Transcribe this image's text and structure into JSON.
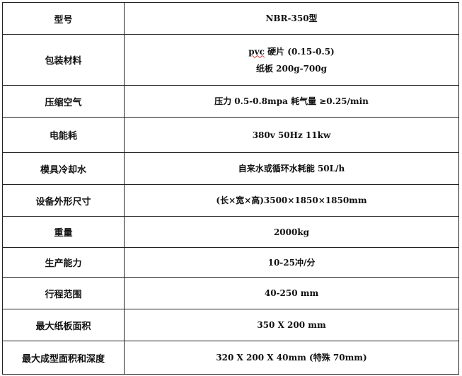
{
  "rows": [
    {
      "label": "型号",
      "value": [
        "NBR-350型"
      ]
    },
    {
      "label": "包装材料",
      "value": [
        "pvc 硬片 (0.15-0.5)",
        "纸板 200g-700g"
      ]
    },
    {
      "label": "压缩空气",
      "value": [
        "压力 0.5-0.8mpa  耗气量 ≥0.25/min"
      ]
    },
    {
      "label": "电能耗",
      "value": [
        "380v 50Hz 11kw"
      ]
    },
    {
      "label": "模具冷却水",
      "value": [
        "自来水或循环水耗能 50L/h"
      ]
    },
    {
      "label": "设备外形尺寸",
      "value": [
        "(长×宽×高)3500×1850×1850mm"
      ]
    },
    {
      "label": "重量",
      "value": [
        "2000kg"
      ]
    },
    {
      "label": "生产能力",
      "value": [
        "10-25冲/分"
      ]
    },
    {
      "label": "行程范围",
      "value": [
        "40-250 mm"
      ]
    },
    {
      "label": "最大纸板面积",
      "value": [
        "350 X 200 mm"
      ]
    },
    {
      "label": "最大成型面积和深度",
      "value": [
        "320 X 200 X 40mm (特殊 70mm)"
      ]
    }
  ]
}
